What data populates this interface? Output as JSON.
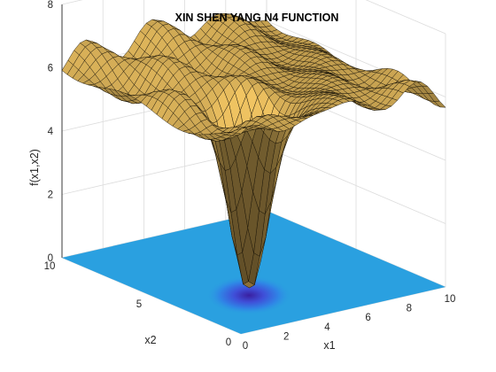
{
  "chart_data": {
    "type": "surface",
    "plot_style": "mesh surface with contour-filled projection on the floor",
    "title": "XIN SHEN YANG N4 FUNCTION",
    "xlabel": "x1",
    "ylabel": "x2",
    "zlabel": "f(x1,x2)",
    "xlim": [
      0,
      10
    ],
    "ylim": [
      0,
      10
    ],
    "zlim": [
      0,
      8
    ],
    "xticks": [
      "0",
      "2",
      "4",
      "6",
      "8",
      "10"
    ],
    "yticks": [
      "0",
      "5",
      "10"
    ],
    "zticks": [
      "0",
      "2",
      "4",
      "6",
      "8"
    ],
    "global_minimum": {
      "x1": 3.14,
      "x2": 3.14,
      "f": 0.1
    },
    "surface_color": "#b89a52",
    "floor_color": "#2aa0e0",
    "minimum_color": "#3a1fa0",
    "grid": "on"
  }
}
